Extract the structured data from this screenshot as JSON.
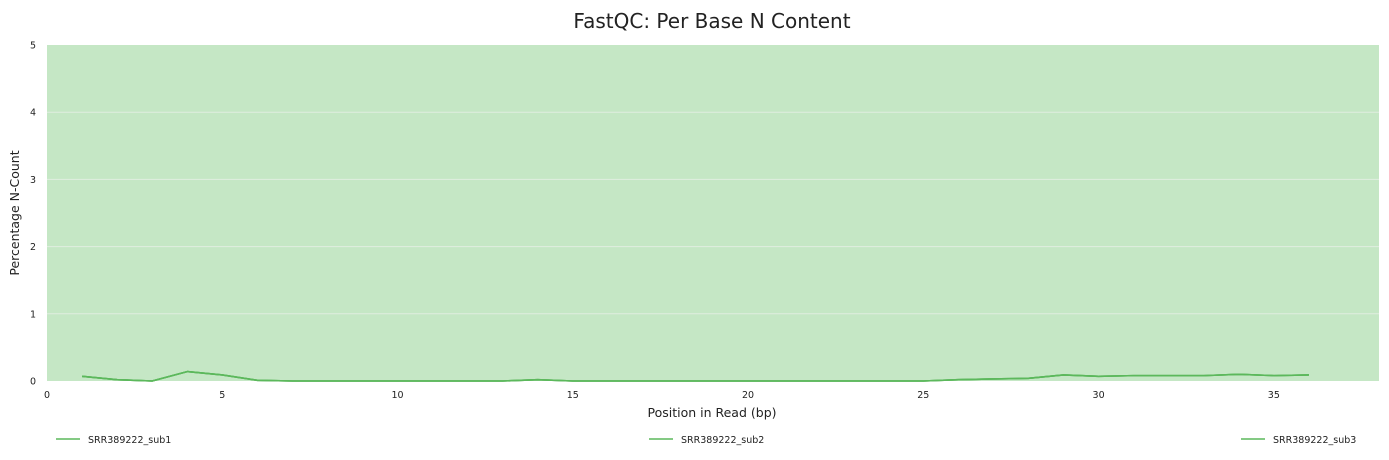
{
  "chart_data": {
    "type": "line",
    "title": "FastQC: Per Base N Content",
    "xlabel": "Position in Read (bp)",
    "ylabel": "Percentage N-Count",
    "xlim": [
      0,
      38
    ],
    "ylim": [
      0,
      5
    ],
    "xticks": [
      0,
      5,
      10,
      15,
      20,
      25,
      30,
      35
    ],
    "yticks": [
      0,
      1,
      2,
      3,
      4,
      5
    ],
    "grid": true,
    "legend_position": "bottom",
    "colors": {
      "background_band": "#c5e7c5",
      "line": "#5cb85c",
      "grid": "#e0eee0"
    },
    "series": [
      {
        "name": "SRR389222_sub1",
        "x": [
          1,
          2,
          3,
          4,
          5,
          6,
          7,
          8,
          9,
          10,
          11,
          12,
          13,
          14,
          15,
          16,
          17,
          18,
          19,
          20,
          21,
          22,
          23,
          24,
          25,
          26,
          27,
          28,
          29,
          30,
          31,
          32,
          33,
          34,
          35,
          36
        ],
        "values": [
          0.07,
          0.02,
          0.0,
          0.14,
          0.09,
          0.01,
          0.0,
          0.0,
          0.0,
          0.0,
          0.0,
          0.0,
          0.0,
          0.02,
          0.0,
          0.0,
          0.0,
          0.0,
          0.0,
          0.0,
          0.0,
          0.0,
          0.0,
          0.0,
          0.0,
          0.02,
          0.03,
          0.04,
          0.09,
          0.07,
          0.08,
          0.08,
          0.08,
          0.1,
          0.08,
          0.09
        ]
      },
      {
        "name": "SRR389222_sub2",
        "x": [
          1,
          2,
          3,
          4,
          5,
          6,
          7,
          8,
          9,
          10,
          11,
          12,
          13,
          14,
          15,
          16,
          17,
          18,
          19,
          20,
          21,
          22,
          23,
          24,
          25,
          26,
          27,
          28,
          29,
          30,
          31,
          32,
          33,
          34,
          35,
          36
        ],
        "values": [
          0.07,
          0.02,
          0.0,
          0.14,
          0.09,
          0.01,
          0.0,
          0.0,
          0.0,
          0.0,
          0.0,
          0.0,
          0.0,
          0.02,
          0.0,
          0.0,
          0.0,
          0.0,
          0.0,
          0.0,
          0.0,
          0.0,
          0.0,
          0.0,
          0.0,
          0.02,
          0.03,
          0.04,
          0.09,
          0.07,
          0.08,
          0.08,
          0.08,
          0.1,
          0.08,
          0.09
        ]
      },
      {
        "name": "SRR389222_sub3",
        "x": [
          1,
          2,
          3,
          4,
          5,
          6,
          7,
          8,
          9,
          10,
          11,
          12,
          13,
          14,
          15,
          16,
          17,
          18,
          19,
          20,
          21,
          22,
          23,
          24,
          25,
          26,
          27,
          28,
          29,
          30,
          31,
          32,
          33,
          34,
          35,
          36
        ],
        "values": [
          0.07,
          0.02,
          0.0,
          0.14,
          0.09,
          0.01,
          0.0,
          0.0,
          0.0,
          0.0,
          0.0,
          0.0,
          0.0,
          0.02,
          0.0,
          0.0,
          0.0,
          0.0,
          0.0,
          0.0,
          0.0,
          0.0,
          0.0,
          0.0,
          0.0,
          0.02,
          0.03,
          0.04,
          0.09,
          0.07,
          0.08,
          0.08,
          0.08,
          0.1,
          0.08,
          0.09
        ]
      }
    ]
  }
}
